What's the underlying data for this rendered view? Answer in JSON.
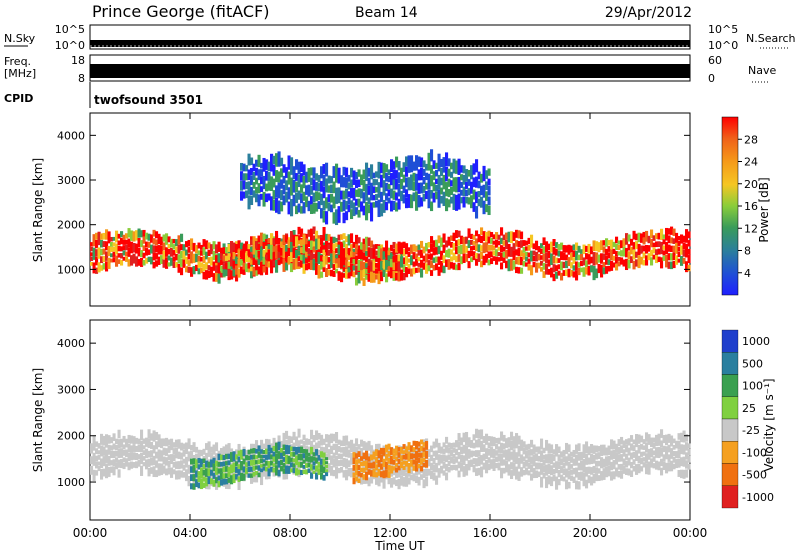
{
  "header": {
    "station": "Prince George (fitACF)",
    "beam": "Beam 14",
    "date": "29/Apr/2012"
  },
  "noise_panel": {
    "left_label": "N.Sky",
    "right_label": "N.Search",
    "tick_top": "10^5",
    "tick_bottom": "10^0"
  },
  "freq_panel": {
    "left_label_1": "Freq.",
    "left_label_2": "[MHz]",
    "right_label": "Nave",
    "left_tick_top": "18",
    "left_tick_bottom": "8",
    "right_tick_top": "60",
    "right_tick_bottom": "0"
  },
  "cpid_panel": {
    "label": "CPID",
    "value": "twofsound 3501"
  },
  "x_axis": {
    "label": "Time UT",
    "ticks": [
      "00:00",
      "04:00",
      "08:00",
      "12:00",
      "16:00",
      "20:00",
      "00:00"
    ]
  },
  "chart_data": [
    {
      "type": "heatmap",
      "panel": "power",
      "ylabel": "Slant Range [km]",
      "ylim": [
        180,
        4500
      ],
      "yticks": [
        1000,
        2000,
        3000,
        4000
      ],
      "xlim_hours": [
        0,
        24
      ],
      "colorbar": {
        "label": "Power [dB]",
        "ticks": [
          "4",
          "8",
          "12",
          "16",
          "20",
          "24",
          "28"
        ],
        "colors": [
          "#1f1fff",
          "#1f4fd6",
          "#2b7f9c",
          "#3a9c5a",
          "#8acd3a",
          "#f5c623",
          "#f59a1a",
          "#f0611a",
          "#e02020",
          "#ff0000"
        ]
      },
      "features": [
        {
          "name": "main echo band",
          "start_h": 0,
          "end_h": 24,
          "range_km": [
            900,
            1800
          ],
          "peak_power_db": 30
        },
        {
          "name": "strong scatter patch",
          "start_h": 5,
          "end_h": 12.5,
          "range_km": [
            800,
            1700
          ],
          "peak_power_db": 30
        },
        {
          "name": "upper scatter",
          "start_h": 6,
          "end_h": 16,
          "range_km": [
            2200,
            3500
          ],
          "peak_power_db": 12
        }
      ]
    },
    {
      "type": "heatmap",
      "panel": "velocity",
      "ylabel": "Slant Range [km]",
      "ylim": [
        180,
        4500
      ],
      "yticks": [
        1000,
        2000,
        3000,
        4000
      ],
      "xlim_hours": [
        0,
        24
      ],
      "colorbar": {
        "label": "Velocity [m s⁻¹]",
        "ticks": [
          "1000",
          "500",
          "100",
          "25",
          "-25",
          "-100",
          "-500",
          "-1000"
        ],
        "colors": [
          "#1f3fcc",
          "#2a7f9f",
          "#3aa050",
          "#80d040",
          "#c8c8c8",
          "#f5a020",
          "#f07010",
          "#e02020"
        ]
      },
      "features": [
        {
          "name": "ground scatter",
          "start_h": 0,
          "end_h": 24,
          "range_km": [
            1000,
            2000
          ],
          "velocity": "0"
        },
        {
          "name": "away-flow patch",
          "start_h": 4,
          "end_h": 9.5,
          "range_km": [
            1000,
            1700
          ],
          "velocity": "100 to 500"
        },
        {
          "name": "toward-flow patch",
          "start_h": 10.5,
          "end_h": 13.5,
          "range_km": [
            1100,
            1800
          ],
          "velocity": "-100 to -500"
        }
      ]
    }
  ]
}
